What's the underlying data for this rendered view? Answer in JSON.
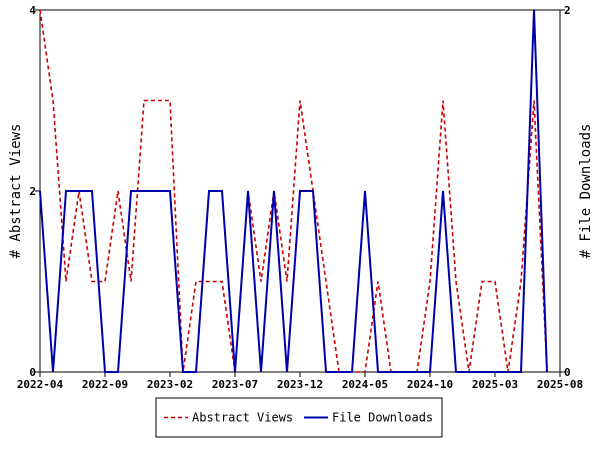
{
  "chart_data": {
    "type": "line",
    "title": "",
    "x_tick_labels": [
      "2022-04",
      "2022-09",
      "2023-02",
      "2023-07",
      "2023-12",
      "2024-05",
      "2024-10",
      "2025-03",
      "2025-08"
    ],
    "x_start": "2022-04",
    "x_end": "2025-08",
    "y_left": {
      "label": "# Abstract Views",
      "ylim": [
        0,
        4
      ],
      "ticks": [
        "0",
        "2",
        "4"
      ]
    },
    "y_right": {
      "label": "# File Downloads",
      "ylim": [
        0,
        2
      ],
      "ticks": [
        "0",
        "2"
      ]
    },
    "grid": false,
    "legend_placement": "bottom-center",
    "series": [
      {
        "name": "Abstract Views",
        "axis": "left",
        "color": "#cc0000",
        "style": "dashed",
        "x": [
          "2022-04",
          "2022-05",
          "2022-06",
          "2022-07",
          "2022-08",
          "2022-09",
          "2022-10",
          "2022-11",
          "2022-12",
          "2023-01",
          "2023-02",
          "2023-03",
          "2023-04",
          "2023-05",
          "2023-06",
          "2023-07",
          "2023-08",
          "2023-09",
          "2023-10",
          "2023-11",
          "2023-12",
          "2024-01",
          "2024-02",
          "2024-03",
          "2024-04",
          "2024-05",
          "2024-06",
          "2024-07",
          "2024-08",
          "2024-09",
          "2024-10",
          "2024-11",
          "2024-12",
          "2025-01",
          "2025-02",
          "2025-03",
          "2025-04",
          "2025-05",
          "2025-06",
          "2025-07"
        ],
        "values": [
          4,
          3,
          1,
          2,
          1,
          1,
          2,
          1,
          3,
          3,
          3,
          0,
          1,
          1,
          1,
          0,
          2,
          1,
          2,
          1,
          3,
          2,
          1,
          0,
          0,
          0,
          1,
          0,
          0,
          0,
          1,
          3,
          1,
          0,
          1,
          1,
          0,
          1,
          3,
          0
        ]
      },
      {
        "name": "File Downloads",
        "axis": "right",
        "color": "#0000aa",
        "style": "solid",
        "x": [
          "2022-04",
          "2022-05",
          "2022-06",
          "2022-07",
          "2022-08",
          "2022-09",
          "2022-10",
          "2022-11",
          "2022-12",
          "2023-01",
          "2023-02",
          "2023-03",
          "2023-04",
          "2023-05",
          "2023-06",
          "2023-07",
          "2023-08",
          "2023-09",
          "2023-10",
          "2023-11",
          "2023-12",
          "2024-01",
          "2024-02",
          "2024-03",
          "2024-04",
          "2024-05",
          "2024-06",
          "2024-07",
          "2024-08",
          "2024-09",
          "2024-10",
          "2024-11",
          "2024-12",
          "2025-01",
          "2025-02",
          "2025-03",
          "2025-04",
          "2025-05",
          "2025-06",
          "2025-07"
        ],
        "values": [
          1,
          0,
          1,
          1,
          1,
          0,
          0,
          1,
          1,
          1,
          1,
          0,
          0,
          1,
          1,
          0,
          1,
          0,
          1,
          0,
          1,
          1,
          0,
          0,
          0,
          1,
          0,
          0,
          0,
          0,
          0,
          1,
          0,
          0,
          0,
          0,
          0,
          0,
          2,
          0
        ]
      }
    ]
  }
}
